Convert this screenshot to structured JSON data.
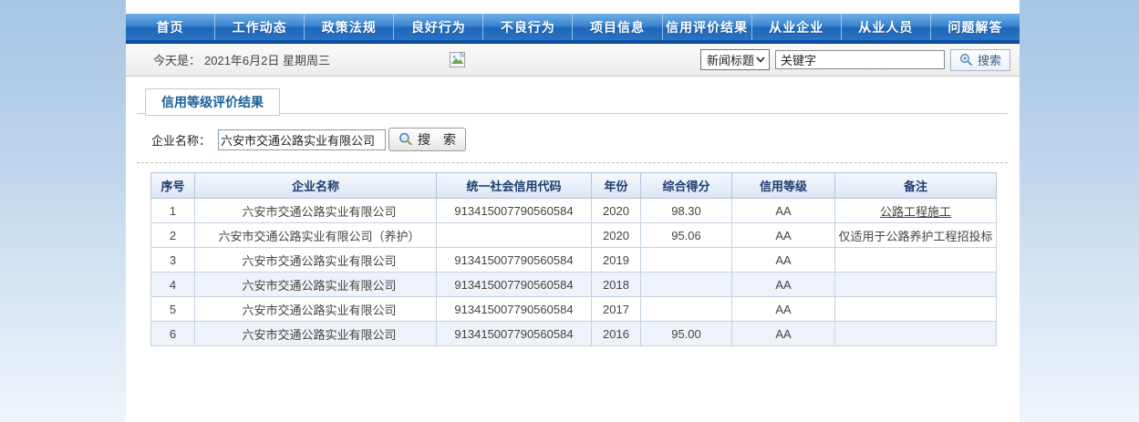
{
  "nav": {
    "items": [
      {
        "label": "首页"
      },
      {
        "label": "工作动态"
      },
      {
        "label": "政策法规"
      },
      {
        "label": "良好行为"
      },
      {
        "label": "不良行为"
      },
      {
        "label": "项目信息"
      },
      {
        "label": "信用评价结果"
      },
      {
        "label": "从业企业"
      },
      {
        "label": "从业人员"
      },
      {
        "label": "问题解答"
      }
    ]
  },
  "info_bar": {
    "today_label": "今天是：",
    "date_text": "2021年6月2日 星期周三",
    "category_value": "新闻标题",
    "keyword_value": "关键字",
    "search_label": "搜索"
  },
  "section": {
    "title": "信用等级评价结果"
  },
  "form": {
    "company_label": "企业名称：",
    "company_value": "六安市交通公路实业有限公司",
    "search_label": "搜　索"
  },
  "table": {
    "headers": [
      "序号",
      "企业名称",
      "统一社会信用代码",
      "年份",
      "综合得分",
      "信用等级",
      "备注"
    ],
    "rows": [
      {
        "seq": "1",
        "name": "六安市交通公路实业有限公司",
        "code": "913415007790560584",
        "year": "2020",
        "score": "98.30",
        "grade": "AA",
        "remark": "公路工程施工",
        "remark_underline": true,
        "shaded": false
      },
      {
        "seq": "2",
        "name": "六安市交通公路实业有限公司（养护）",
        "code": "",
        "year": "2020",
        "score": "95.06",
        "grade": "AA",
        "remark": "仅适用于公路养护工程招投标",
        "remark_underline": false,
        "shaded": false
      },
      {
        "seq": "3",
        "name": "六安市交通公路实业有限公司",
        "code": "913415007790560584",
        "year": "2019",
        "score": "",
        "grade": "AA",
        "remark": "",
        "remark_underline": false,
        "shaded": false
      },
      {
        "seq": "4",
        "name": "六安市交通公路实业有限公司",
        "code": "913415007790560584",
        "year": "2018",
        "score": "",
        "grade": "AA",
        "remark": "",
        "remark_underline": false,
        "shaded": true
      },
      {
        "seq": "5",
        "name": "六安市交通公路实业有限公司",
        "code": "913415007790560584",
        "year": "2017",
        "score": "",
        "grade": "AA",
        "remark": "",
        "remark_underline": false,
        "shaded": false
      },
      {
        "seq": "6",
        "name": "六安市交通公路实业有限公司",
        "code": "913415007790560584",
        "year": "2016",
        "score": "95.00",
        "grade": "AA",
        "remark": "",
        "remark_underline": false,
        "shaded": true
      }
    ]
  },
  "colors": {
    "nav_top": "#6fb0e6",
    "nav_bottom": "#1f66b8",
    "nav_underline": "#0d4fa3",
    "section_title": "#1d6097",
    "table_header_text": "#1e3a6e",
    "table_border": "#c3d2e2",
    "row_shaded_bg": "#eef2f9",
    "link": "#2d5e9e",
    "page_bg_top": "#a7c5e5",
    "page_bg_bottom": "#eef5fb"
  }
}
